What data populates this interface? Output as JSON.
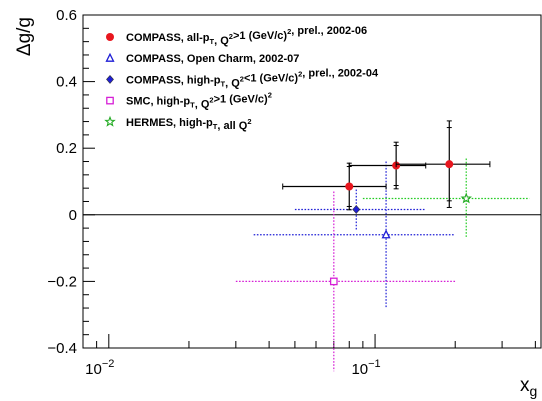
{
  "chart_data": {
    "type": "scatter",
    "title": "",
    "xlabel": "x_g",
    "ylabel": "Δg/g",
    "xscale": "log",
    "xlim": [
      0.008,
      0.42
    ],
    "ylim": [
      -0.4,
      0.6
    ],
    "yticks": [
      -0.4,
      -0.2,
      0,
      0.2,
      0.4,
      0.6
    ],
    "ytick_labels": [
      "−0.4",
      "−0.2",
      "0",
      "0.2",
      "0.4",
      "0.6"
    ],
    "xtick_labels": [
      {
        "value": 0.01,
        "base": "10",
        "exp": "−2"
      },
      {
        "value": 0.1,
        "base": "10",
        "exp": "−1"
      }
    ],
    "zero_line": true,
    "grid": false,
    "legend_position": "top-left",
    "series": [
      {
        "name": "COMPASS, all-pT, Q²>1 (GeV/c)², prel., 2002-06",
        "legend": [
          {
            "t": "COMPASS, all-p"
          },
          {
            "t": "T",
            "sub": true
          },
          {
            "t": ", Q"
          },
          {
            "t": "2",
            "sup": true
          },
          {
            "t": ">1 (GeV/c)"
          },
          {
            "t": "2",
            "sup": true
          },
          {
            "t": ", prel., 2002-06"
          }
        ],
        "marker": "filled-circle",
        "color": "#e8161e",
        "line_style": "solid",
        "bar_color": "#000000",
        "points": [
          {
            "x": 0.08,
            "y": 0.085,
            "xerr_low": 0.035,
            "xerr_high": 0.03,
            "yerr_stat": 0.06,
            "yerr_tot": 0.07
          },
          {
            "x": 0.12,
            "y": 0.148,
            "xerr_low": 0.04,
            "xerr_high": 0.035,
            "yerr_stat": 0.06,
            "yerr_tot": 0.07
          },
          {
            "x": 0.19,
            "y": 0.152,
            "xerr_low": 0.07,
            "xerr_high": 0.08,
            "yerr_stat": 0.11,
            "yerr_tot": 0.13
          }
        ]
      },
      {
        "name": "COMPASS, Open Charm, 2002-07",
        "legend": [
          {
            "t": "COMPASS, Open Charm, 2002-07"
          }
        ],
        "marker": "open-triangle",
        "color": "#1f1fd6",
        "line_style": "dotted",
        "bar_color": "#1f1fd6",
        "points": [
          {
            "x": 0.11,
            "y": -0.06,
            "xerr_low": 0.075,
            "xerr_high": 0.09,
            "yerr_tot": 0.22
          }
        ]
      },
      {
        "name": "COMPASS, high-pT, Q²<1 (GeV/c)², prel., 2002-04",
        "legend": [
          {
            "t": "COMPASS, high-p"
          },
          {
            "t": "T",
            "sub": true
          },
          {
            "t": ", Q"
          },
          {
            "t": "2",
            "sup": true
          },
          {
            "t": "<1 (GeV/c)"
          },
          {
            "t": "2",
            "sup": true
          },
          {
            "t": ", prel., 2002-04"
          }
        ],
        "marker": "filled-diamond",
        "color": "#1f1fd6",
        "line_style": "dotted",
        "bar_color": "#1f1fd6",
        "points": [
          {
            "x": 0.085,
            "y": 0.016,
            "xerr_low": 0.035,
            "xerr_high": 0.07,
            "yerr_tot": 0.06
          }
        ]
      },
      {
        "name": "SMC, high-pT, Q²>1 (GeV/c)²",
        "legend": [
          {
            "t": "SMC, high-p"
          },
          {
            "t": "T",
            "sub": true
          },
          {
            "t": ", Q"
          },
          {
            "t": "2",
            "sup": true
          },
          {
            "t": ">1 (GeV/c)"
          },
          {
            "t": "2",
            "sup": true
          }
        ],
        "marker": "open-square",
        "color": "#d61fd6",
        "line_style": "dotted",
        "bar_color": "#d61fd6",
        "points": [
          {
            "x": 0.07,
            "y": -0.2,
            "xerr_low": 0.04,
            "xerr_high": 0.13,
            "yerr_tot": 0.27
          }
        ]
      },
      {
        "name": "HERMES, high-pT, all Q²",
        "legend": [
          {
            "t": "HERMES, high-p"
          },
          {
            "t": "T",
            "sub": true
          },
          {
            "t": ", all Q"
          },
          {
            "t": "2",
            "sup": true
          }
        ],
        "marker": "open-star",
        "color": "#22aa22",
        "line_style": "dotted",
        "bar_color": "#22cc22",
        "points": [
          {
            "x": 0.22,
            "y": 0.049,
            "xerr_low": 0.13,
            "xerr_high": 0.16,
            "yerr_tot": 0.12
          }
        ]
      }
    ]
  }
}
